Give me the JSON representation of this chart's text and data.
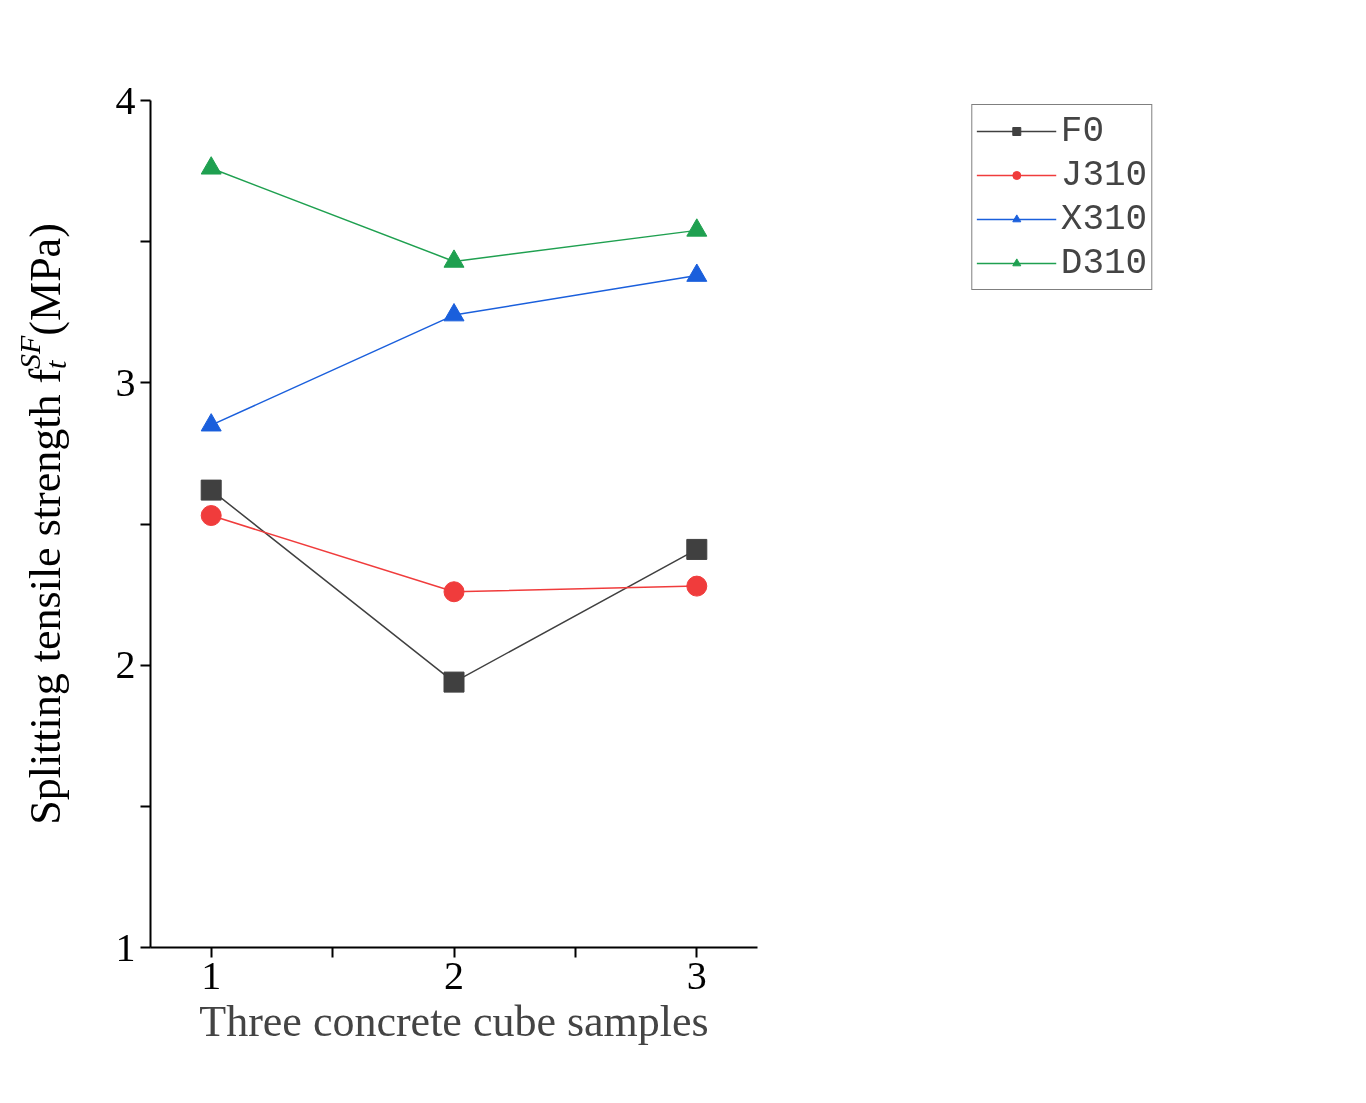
{
  "chart_data": {
    "type": "line",
    "xlabel": "Three concrete cube samples",
    "ylabel": "Splitting tensile strength f$_{t}$$^{SF}$(MPa)",
    "x": [
      1,
      2,
      3
    ],
    "series": [
      {
        "name": "F0",
        "color": "#404040",
        "marker": "square",
        "values": [
          2.62,
          1.94,
          2.41
        ]
      },
      {
        "name": "J310",
        "color": "#f03c3c",
        "marker": "circle",
        "values": [
          2.53,
          2.26,
          2.28
        ]
      },
      {
        "name": "X310",
        "color": "#1a5fdc",
        "marker": "triangle",
        "values": [
          2.85,
          3.24,
          3.38
        ]
      },
      {
        "name": "D310",
        "color": "#1fa050",
        "marker": "triangle",
        "values": [
          3.76,
          3.43,
          3.54
        ]
      }
    ],
    "xlim": [
      0.75,
      3.25
    ],
    "ylim": [
      1,
      4
    ],
    "xticks": [
      1,
      {
        "value": 1.5,
        "label": null
      },
      2,
      {
        "value": 2.5,
        "label": null
      },
      3
    ],
    "yticks": [
      1,
      {
        "value": 1.5,
        "label": null
      },
      2,
      {
        "value": 2.5,
        "label": null
      },
      3,
      {
        "value": 3.5,
        "label": null
      },
      4
    ],
    "grid": false,
    "legend": "top right",
    "line_style": "solid"
  }
}
